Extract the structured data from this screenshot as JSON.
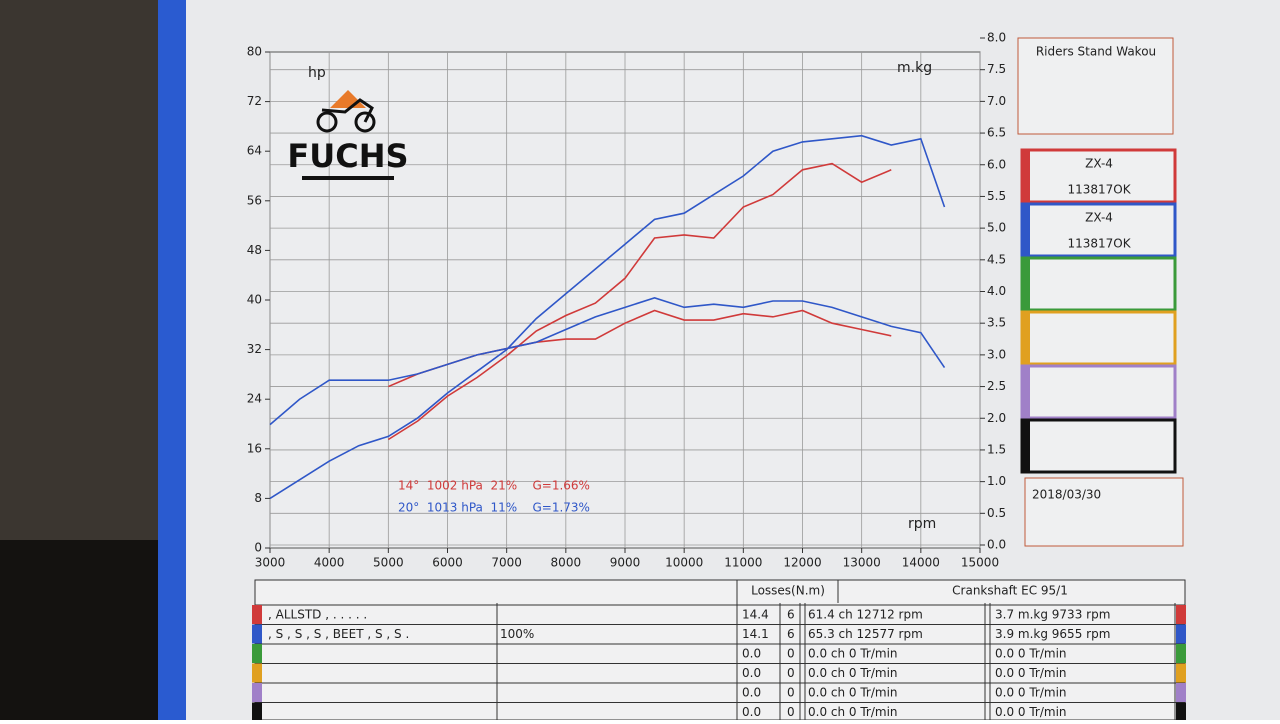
{
  "chart_data": {
    "type": "line",
    "left_unit": "hp",
    "right_unit": "m.kg",
    "x_unit": "rpm",
    "x": [
      3000,
      3500,
      4000,
      4500,
      5000,
      5500,
      6000,
      6500,
      7000,
      7500,
      8000,
      8500,
      9000,
      9500,
      10000,
      10500,
      11000,
      11500,
      12000,
      12500,
      13000,
      13500,
      14000,
      14400
    ],
    "series": [
      {
        "color": "#d03a3a",
        "axis": "y",
        "values": [
          null,
          null,
          null,
          null,
          17.5,
          20.5,
          24.5,
          27.5,
          31,
          35,
          37.5,
          39.5,
          43.5,
          50,
          50.5,
          50,
          55,
          57,
          61,
          62,
          59,
          61,
          null,
          null
        ]
      },
      {
        "color": "#2f57c8",
        "axis": "y",
        "values": [
          8,
          11,
          14,
          16.5,
          18,
          21,
          25,
          28.5,
          32,
          37,
          41,
          45,
          49,
          53,
          54,
          57,
          60,
          64,
          65.5,
          66,
          66.5,
          65,
          66,
          55
        ]
      },
      {
        "color": "#d03a3a",
        "axis": "y2",
        "values": [
          null,
          null,
          null,
          null,
          2.5,
          2.7,
          2.85,
          3.0,
          3.1,
          3.2,
          3.25,
          3.25,
          3.5,
          3.7,
          3.55,
          3.55,
          3.65,
          3.6,
          3.7,
          3.5,
          3.4,
          3.3,
          null,
          null
        ]
      },
      {
        "color": "#2f57c8",
        "axis": "y2",
        "values": [
          1.9,
          2.3,
          2.6,
          2.6,
          2.6,
          2.7,
          2.85,
          3.0,
          3.1,
          3.2,
          3.4,
          3.6,
          3.75,
          3.9,
          3.75,
          3.8,
          3.75,
          3.85,
          3.85,
          3.75,
          3.6,
          3.45,
          3.35,
          2.8
        ]
      }
    ],
    "xlim": [
      3000,
      15000
    ],
    "xticks": [
      3000,
      4000,
      5000,
      6000,
      7000,
      8000,
      9000,
      10000,
      11000,
      12000,
      13000,
      14000,
      15000
    ],
    "ylim": [
      0,
      80
    ],
    "yticks": [
      0,
      8,
      16,
      24,
      32,
      40,
      48,
      56,
      64,
      72,
      80
    ],
    "y2lim": [
      0,
      8
    ],
    "y2ticks": [
      {
        "value": 0,
        "label": "0.0"
      },
      0.5,
      {
        "value": 1,
        "label": "1.0"
      },
      1.5,
      {
        "value": 2,
        "label": "2.0"
      },
      2.5,
      {
        "value": 3,
        "label": "3.0"
      },
      3.5,
      {
        "value": 4,
        "label": "4.0"
      },
      4.5,
      {
        "value": 5,
        "label": "5.0"
      },
      5.5,
      {
        "value": 6,
        "label": "6.0"
      },
      6.5,
      {
        "value": 7,
        "label": "7.0"
      },
      7.5,
      {
        "value": 8,
        "label": "8.0"
      }
    ],
    "grid": true,
    "annotations": [
      {
        "text": "14°  1002 hPa  21%    G=1.66%",
        "color": "#d03a3a"
      },
      {
        "text": "20°  1013 hPa  11%    G=1.73%",
        "color": "#2f57c8"
      }
    ]
  },
  "logo": "FUCHS",
  "shop": "Riders Stand Wakou",
  "date": "2018/03/30",
  "legend": [
    {
      "color": "#d03a3a",
      "lines": [
        "ZX-4",
        "113817OK"
      ]
    },
    {
      "color": "#2f57c8",
      "lines": [
        "ZX-4",
        "113817OK"
      ]
    },
    {
      "color": "#3a9a3a"
    },
    {
      "color": "#e0a020"
    },
    {
      "color": "#a080c8"
    },
    {
      "color": "#111111"
    }
  ],
  "table": {
    "losses_header": "Losses(N.m)",
    "crank_header": "Crankshaft EC 95/1",
    "rows": [
      {
        "color": "#d03a3a",
        "label": ", ALLSTD , . . . . .",
        "losses": "14.4",
        "code": "6",
        "power": "61.4 ch 12712 rpm",
        "torque": "3.7 m.kg 9733 rpm"
      },
      {
        "color": "#2f57c8",
        "label": ", S , S , S , BEET , S , S .",
        "extra": "100%",
        "losses": "14.1",
        "code": "6",
        "power": "65.3 ch 12577 rpm",
        "torque": "3.9 m.kg 9655 rpm"
      },
      {
        "color": "#3a9a3a",
        "losses": "0.0",
        "code": "0",
        "power": "0.0 ch 0 Tr/min",
        "torque": "0.0  0 Tr/min"
      },
      {
        "color": "#e0a020",
        "losses": "0.0",
        "code": "0",
        "power": "0.0 ch 0 Tr/min",
        "torque": "0.0  0 Tr/min"
      },
      {
        "color": "#a080c8",
        "losses": "0.0",
        "code": "0",
        "power": "0.0 ch 0 Tr/min",
        "torque": "0.0  0 Tr/min"
      },
      {
        "color": "#111111",
        "losses": "0.0",
        "code": "0",
        "power": "0.0 ch 0 Tr/min",
        "torque": "0.0  0 Tr/min"
      }
    ]
  }
}
